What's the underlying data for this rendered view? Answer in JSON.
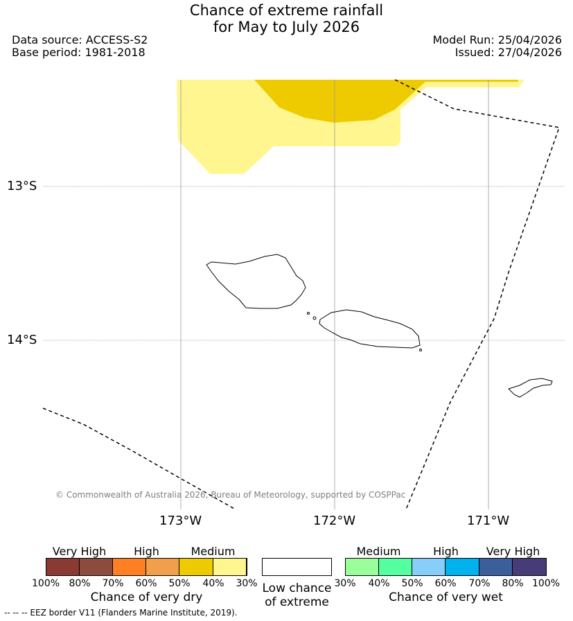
{
  "title": {
    "line1": "Chance of extreme rainfall",
    "line2": "for May to July 2026"
  },
  "info": {
    "data_source": "Data source: ACCESS-S2",
    "base_period": "Base period: 1981-2018",
    "model_run": "Model Run: 25/04/2026",
    "issued": "Issued: 27/04/2026"
  },
  "map": {
    "lat_labels": [
      "13°S",
      "14°S"
    ],
    "lon_labels": [
      "173°W",
      "172°W",
      "171°W"
    ],
    "copyright": "© Commonwealth of Australia 2026, Bureau of Meteorology, supported by COSPPac"
  },
  "legend": {
    "dry": {
      "headers": [
        "Very High",
        "High",
        "Medium"
      ],
      "ticks": [
        "100%",
        "80%",
        "70%",
        "60%",
        "50%",
        "40%",
        "30%"
      ],
      "caption": "Chance of very dry",
      "colors": [
        "#8b3a33",
        "#8b4c3e",
        "#ff8022",
        "#f0a04b",
        "#eecb00",
        "#fff68f"
      ]
    },
    "low": {
      "caption_line1": "Low chance",
      "caption_line2": "of extreme"
    },
    "wet": {
      "headers": [
        "Medium",
        "High",
        "Very High"
      ],
      "ticks": [
        "30%",
        "40%",
        "50%",
        "60%",
        "70%",
        "80%",
        "100%"
      ],
      "caption": "Chance of very wet",
      "colors": [
        "#9aff9a",
        "#54ff9f",
        "#87cefa",
        "#00b2ee",
        "#3a5f9b",
        "#473c78"
      ]
    }
  },
  "footnote": "--  --  -- EEZ border V11 (Flanders Marine Institute, 2019).",
  "colors": {
    "medium_yellow": "#eecb00",
    "light_yellow": "#fff68f"
  }
}
